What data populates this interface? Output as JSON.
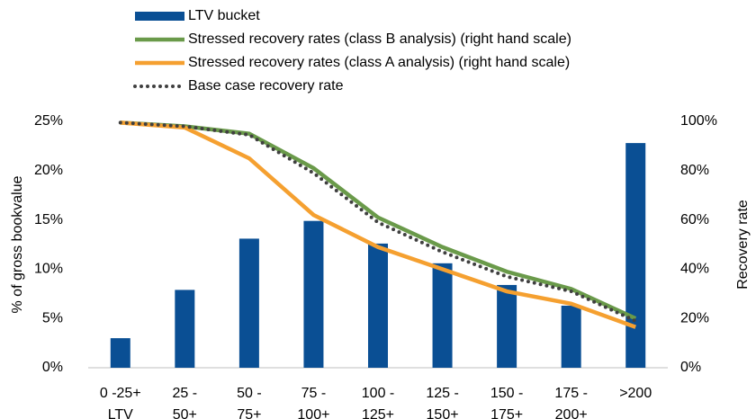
{
  "chart_data": {
    "type": "bar",
    "categories": [
      [
        "0 -25+",
        "LTV"
      ],
      [
        "25 -",
        "50+"
      ],
      [
        "50 -",
        "75+"
      ],
      [
        "75 -",
        "100+"
      ],
      [
        "100 -",
        "125+"
      ],
      [
        "125 -",
        "150+"
      ],
      [
        "150 -",
        "175+"
      ],
      [
        "175 -",
        "200+"
      ],
      [
        ">200"
      ]
    ],
    "ylabel": "% of gross bookvalue",
    "y2label": "Recovery rate",
    "ylim": [
      0,
      25
    ],
    "yticks": [
      {
        "value": 0,
        "label": "0%"
      },
      {
        "value": 5,
        "label": "5%"
      },
      {
        "value": 10,
        "label": "10%"
      },
      {
        "value": 15,
        "label": "15%"
      },
      {
        "value": 20,
        "label": "20%"
      },
      {
        "value": 25,
        "label": "25%"
      }
    ],
    "y2lim": [
      0,
      100
    ],
    "y2ticks": [
      {
        "value": 0,
        "label": "0%"
      },
      {
        "value": 20,
        "label": "20%"
      },
      {
        "value": 40,
        "label": "40%"
      },
      {
        "value": 60,
        "label": "60%"
      },
      {
        "value": 80,
        "label": "80%"
      },
      {
        "value": 100,
        "label": "100%"
      }
    ],
    "series": [
      {
        "name": "LTV bucket",
        "type": "bar",
        "color": "#0a4f94",
        "values": [
          3,
          7.9,
          13.1,
          14.9,
          12.6,
          10.6,
          8.4,
          6.3,
          22.8
        ]
      },
      {
        "name": "Stressed recovery rates (class B analysis) (right hand scale)",
        "type": "line",
        "axis": "y2",
        "color": "#6a9a4a",
        "values": [
          99.5,
          98,
          95,
          81,
          61,
          49,
          39,
          32,
          20
        ]
      },
      {
        "name": "Stressed recovery rates (class A analysis) (right hand scale)",
        "type": "line",
        "axis": "y2",
        "color": "#f5a030",
        "values": [
          99.5,
          97.5,
          85,
          62,
          49,
          40,
          31,
          26,
          16.5
        ]
      },
      {
        "name": "Base case recovery rate",
        "type": "line",
        "axis": "y2",
        "dashed": true,
        "color": "#404040",
        "values": [
          99.5,
          98,
          94.5,
          79,
          59,
          47,
          37,
          31,
          19
        ]
      }
    ]
  }
}
